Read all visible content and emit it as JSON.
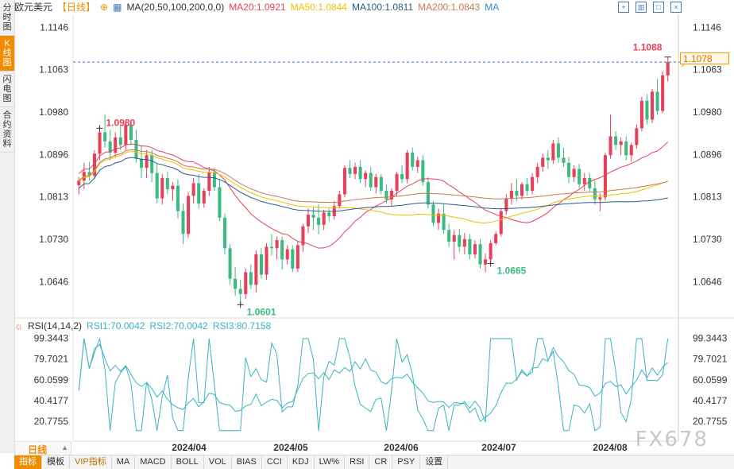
{
  "sidebar": {
    "tabs": [
      "分时图",
      "K线图",
      "闪电图",
      "合约资料"
    ],
    "active": 1
  },
  "toolbar": {
    "symbol": "欧元美元",
    "period": "【日线】",
    "ma_label": "MA(20,50,100,200,0,0)",
    "ma20": "MA20:1.0921",
    "ma50": "MA50:1.0844",
    "ma100": "MA100:1.0811",
    "ma200": "MA200:1.0843",
    "ma": "MA"
  },
  "rsi_bar": {
    "label": "RSI(14,14,2)",
    "rsi1": "RSI1:70.0042",
    "rsi2": "RSI2:70.0042",
    "rsi3": "RSI3:80.7158"
  },
  "period_bar": {
    "label": "日线"
  },
  "bottom_tabs": [
    "指标",
    "模板",
    "VIP指标",
    "MA",
    "MACD",
    "BOLL",
    "VOL",
    "BIAS",
    "CCI",
    "KDJ",
    "LW%",
    "RSI",
    "CR",
    "PSY",
    "设置"
  ],
  "watermark": "FX678",
  "current_price": "1.1078",
  "colors": {
    "up": "#e8405a",
    "down": "#3cba82",
    "ma20": "#e8405a",
    "ma50": "#f0c000",
    "ma100": "#2d5a8c",
    "ma200": "#c87850",
    "rsi": "#3bb3c3",
    "accent": "#f08c00"
  },
  "chart_data": {
    "type": "candlestick",
    "x_ticks": [
      "2024/04",
      "2024/05",
      "2024/06",
      "2024/07",
      "2024/08"
    ],
    "y_ticks": [
      "1.1146",
      "1.1063",
      "1.0980",
      "1.0896",
      "1.0813",
      "1.0730",
      "1.0646"
    ],
    "ylim": [
      1.0578,
      1.1172
    ],
    "annotations": [
      {
        "text": "1.0980",
        "value": 1.098
      },
      {
        "text": "1.0601",
        "value": 1.0601
      },
      {
        "text": "1.0665",
        "value": 1.0665
      },
      {
        "text": "1.1088",
        "value": 1.1088
      }
    ],
    "last_price": 1.1078,
    "candles": [
      [
        1.0836,
        1.0852,
        1.0818,
        1.0845
      ],
      [
        1.0845,
        1.088,
        1.0828,
        1.0862
      ],
      [
        1.0862,
        1.0882,
        1.0845,
        1.0855
      ],
      [
        1.0855,
        1.0905,
        1.0848,
        1.0898
      ],
      [
        1.0898,
        1.0948,
        1.0885,
        1.094
      ],
      [
        1.094,
        1.0975,
        1.091,
        1.0922
      ],
      [
        1.0922,
        1.0945,
        1.0885,
        1.09
      ],
      [
        1.09,
        1.094,
        1.089,
        1.093
      ],
      [
        1.093,
        1.0955,
        1.0905,
        1.0915
      ],
      [
        1.0915,
        1.0965,
        1.0905,
        1.0955
      ],
      [
        1.0955,
        1.096,
        1.0915,
        1.0925
      ],
      [
        1.0925,
        1.0945,
        1.088,
        1.0888
      ],
      [
        1.0888,
        1.0915,
        1.085,
        1.087
      ],
      [
        1.087,
        1.0905,
        1.085,
        1.0895
      ],
      [
        1.0895,
        1.0905,
        1.0842,
        1.086
      ],
      [
        1.086,
        1.0878,
        1.08,
        1.081
      ],
      [
        1.081,
        1.0858,
        1.0798,
        1.085
      ],
      [
        1.085,
        1.0862,
        1.0818,
        1.0828
      ],
      [
        1.0828,
        1.0842,
        1.0805,
        1.0835
      ],
      [
        1.0835,
        1.0848,
        1.077,
        1.0785
      ],
      [
        1.0785,
        1.08,
        1.072,
        1.074
      ],
      [
        1.074,
        1.0822,
        1.0732,
        1.0815
      ],
      [
        1.0815,
        1.085,
        1.08,
        1.084
      ],
      [
        1.084,
        1.0858,
        1.079,
        1.08
      ],
      [
        1.08,
        1.083,
        1.0792,
        1.0825
      ],
      [
        1.0825,
        1.0872,
        1.0815,
        1.0862
      ],
      [
        1.0862,
        1.087,
        1.0825,
        1.0832
      ],
      [
        1.0832,
        1.0848,
        1.0765,
        1.0772
      ],
      [
        1.0772,
        1.078,
        1.07,
        1.0712
      ],
      [
        1.0712,
        1.072,
        1.064,
        1.0652
      ],
      [
        1.0652,
        1.0675,
        1.0618,
        1.0632
      ],
      [
        1.0632,
        1.065,
        1.0601,
        1.0622
      ],
      [
        1.0622,
        1.0672,
        1.0612,
        1.0665
      ],
      [
        1.0665,
        1.068,
        1.0632,
        1.064
      ],
      [
        1.064,
        1.0708,
        1.0625,
        1.07
      ],
      [
        1.07,
        1.0712,
        1.0652,
        1.066
      ],
      [
        1.066,
        1.0722,
        1.065,
        1.0715
      ],
      [
        1.0715,
        1.074,
        1.0698,
        1.0712
      ],
      [
        1.0712,
        1.0735,
        1.069,
        1.0728
      ],
      [
        1.0728,
        1.0735,
        1.067,
        1.069
      ],
      [
        1.069,
        1.0718,
        1.068,
        1.071
      ],
      [
        1.071,
        1.0718,
        1.0665,
        1.0672
      ],
      [
        1.0672,
        1.0725,
        1.0665,
        1.0718
      ],
      [
        1.0718,
        1.076,
        1.0705,
        1.0755
      ],
      [
        1.0755,
        1.079,
        1.0742,
        1.0778
      ],
      [
        1.0778,
        1.0792,
        1.0748,
        1.0772
      ],
      [
        1.0772,
        1.0798,
        1.074,
        1.0758
      ],
      [
        1.0758,
        1.0788,
        1.0748,
        1.0782
      ],
      [
        1.0782,
        1.079,
        1.0765,
        1.0775
      ],
      [
        1.0775,
        1.0805,
        1.0768,
        1.0795
      ],
      [
        1.0795,
        1.0825,
        1.079,
        1.0818
      ],
      [
        1.0818,
        1.0875,
        1.0812,
        1.087
      ],
      [
        1.087,
        1.0885,
        1.085,
        1.0858
      ],
      [
        1.0858,
        1.088,
        1.0848,
        1.0872
      ],
      [
        1.0872,
        1.0885,
        1.084,
        1.0848
      ],
      [
        1.0848,
        1.0865,
        1.0832,
        1.086
      ],
      [
        1.086,
        1.0872,
        1.0825,
        1.0832
      ],
      [
        1.0832,
        1.0858,
        1.082,
        1.0852
      ],
      [
        1.0852,
        1.0858,
        1.0818,
        1.0825
      ],
      [
        1.0825,
        1.0838,
        1.08,
        1.0808
      ],
      [
        1.0808,
        1.083,
        1.0795,
        1.0825
      ],
      [
        1.0825,
        1.0862,
        1.0815,
        1.0858
      ],
      [
        1.0858,
        1.0875,
        1.084,
        1.0848
      ],
      [
        1.0848,
        1.0905,
        1.084,
        1.09
      ],
      [
        1.09,
        1.091,
        1.0865,
        1.0872
      ],
      [
        1.0872,
        1.0892,
        1.086,
        1.0885
      ],
      [
        1.0885,
        1.0895,
        1.0835,
        1.0842
      ],
      [
        1.0842,
        1.0852,
        1.079,
        1.0798
      ],
      [
        1.0798,
        1.0805,
        1.0755,
        1.0762
      ],
      [
        1.0762,
        1.079,
        1.0748,
        1.078
      ],
      [
        1.078,
        1.0798,
        1.074,
        1.0748
      ],
      [
        1.0748,
        1.076,
        1.0715,
        1.0725
      ],
      [
        1.0725,
        1.0748,
        1.069,
        1.0738
      ],
      [
        1.0738,
        1.075,
        1.0705,
        1.0715
      ],
      [
        1.0715,
        1.0742,
        1.07,
        1.073
      ],
      [
        1.073,
        1.074,
        1.069,
        1.07
      ],
      [
        1.07,
        1.0728,
        1.0692,
        1.072
      ],
      [
        1.072,
        1.073,
        1.0672,
        1.068
      ],
      [
        1.068,
        1.0702,
        1.0665,
        1.069
      ],
      [
        1.069,
        1.0728,
        1.0682,
        1.0722
      ],
      [
        1.0722,
        1.0745,
        1.0718,
        1.074
      ],
      [
        1.074,
        1.079,
        1.0735,
        1.0785
      ],
      [
        1.0785,
        1.0818,
        1.0778,
        1.081
      ],
      [
        1.081,
        1.084,
        1.0798,
        1.0825
      ],
      [
        1.0825,
        1.0848,
        1.0805,
        1.0815
      ],
      [
        1.0815,
        1.0842,
        1.0808,
        1.0838
      ],
      [
        1.0838,
        1.085,
        1.0815,
        1.0825
      ],
      [
        1.0825,
        1.086,
        1.0818,
        1.0852
      ],
      [
        1.0852,
        1.088,
        1.084,
        1.0872
      ],
      [
        1.0872,
        1.0898,
        1.0862,
        1.089
      ],
      [
        1.089,
        1.0905,
        1.0868,
        1.0885
      ],
      [
        1.0885,
        1.0925,
        1.0878,
        1.0918
      ],
      [
        1.0918,
        1.093,
        1.088,
        1.089
      ],
      [
        1.089,
        1.091,
        1.0872,
        1.088
      ],
      [
        1.088,
        1.0892,
        1.084,
        1.0852
      ],
      [
        1.0852,
        1.0875,
        1.0842,
        1.0868
      ],
      [
        1.0868,
        1.0878,
        1.083,
        1.0838
      ],
      [
        1.0838,
        1.086,
        1.0825,
        1.085
      ],
      [
        1.085,
        1.086,
        1.0822,
        1.083
      ],
      [
        1.083,
        1.0845,
        1.0798,
        1.0808
      ],
      [
        1.0808,
        1.082,
        1.0785,
        1.0812
      ],
      [
        1.0812,
        1.09,
        1.0805,
        1.0895
      ],
      [
        1.0895,
        1.0975,
        1.0888,
        1.0932
      ],
      [
        1.0932,
        1.0942,
        1.0905,
        1.0915
      ],
      [
        1.0915,
        1.093,
        1.0895,
        1.0922
      ],
      [
        1.0922,
        1.0932,
        1.0885,
        1.0895
      ],
      [
        1.0895,
        1.092,
        1.0882,
        1.0915
      ],
      [
        1.0915,
        1.0955,
        1.0908,
        1.0948
      ],
      [
        1.0948,
        1.101,
        1.0942,
        1.1002
      ],
      [
        1.1002,
        1.1015,
        1.0955,
        1.0965
      ],
      [
        1.0965,
        1.1025,
        1.0958,
        1.102
      ],
      [
        1.102,
        1.1045,
        1.0975,
        1.0982
      ],
      [
        1.0982,
        1.106,
        1.0978,
        1.1052
      ],
      [
        1.1052,
        1.1088,
        1.104,
        1.1078
      ]
    ],
    "ma_series": [
      {
        "name": "MA20",
        "start": 1.088,
        "end": 1.0921
      },
      {
        "name": "MA50",
        "start": 1.084,
        "end": 1.0844
      },
      {
        "name": "MA100",
        "start": 1.083,
        "end": 1.0811
      },
      {
        "name": "MA200",
        "start": 1.0845,
        "end": 1.0843
      }
    ],
    "rsi_ticks": [
      "99.3443",
      "79.7021",
      "60.0599",
      "40.4177",
      "20.7755"
    ],
    "rsi_ylim": [
      9.6,
      105.0
    ],
    "rsi_last": [
      70.0042,
      80.7158
    ]
  }
}
